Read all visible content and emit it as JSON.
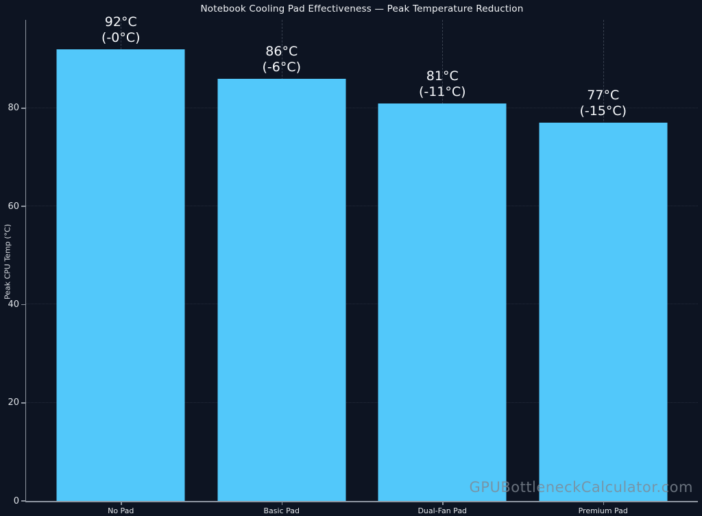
{
  "watermark": "GPUBottleneckCalculator.com",
  "chart_data": {
    "type": "bar",
    "title": "Notebook Cooling Pad Effectiveness — Peak Temperature Reduction",
    "categories": [
      "No Pad",
      "Basic Pad",
      "Dual-Fan Pad",
      "Premium Pad"
    ],
    "values": [
      92,
      86,
      81,
      77
    ],
    "bar_labels": [
      [
        "92°C",
        "(-0°C)"
      ],
      [
        "86°C",
        "(-6°C)"
      ],
      [
        "81°C",
        "(-11°C)"
      ],
      [
        "77°C",
        "(-15°C)"
      ]
    ],
    "xlabel": "",
    "ylabel": "Peak CPU Temp (°C)",
    "ylim": [
      0,
      98
    ],
    "yticks": [
      0,
      20,
      40,
      60,
      80
    ],
    "grid": {
      "horizontal": "dotted",
      "vertical": "dashed at category centers"
    },
    "legend": "none",
    "colors": {
      "background": "#0d1422",
      "bar": "#52c8fa",
      "axis": "#9097a2",
      "text": "#f2f4f7",
      "watermark": "rgba(128,136,147,0.8)"
    }
  }
}
